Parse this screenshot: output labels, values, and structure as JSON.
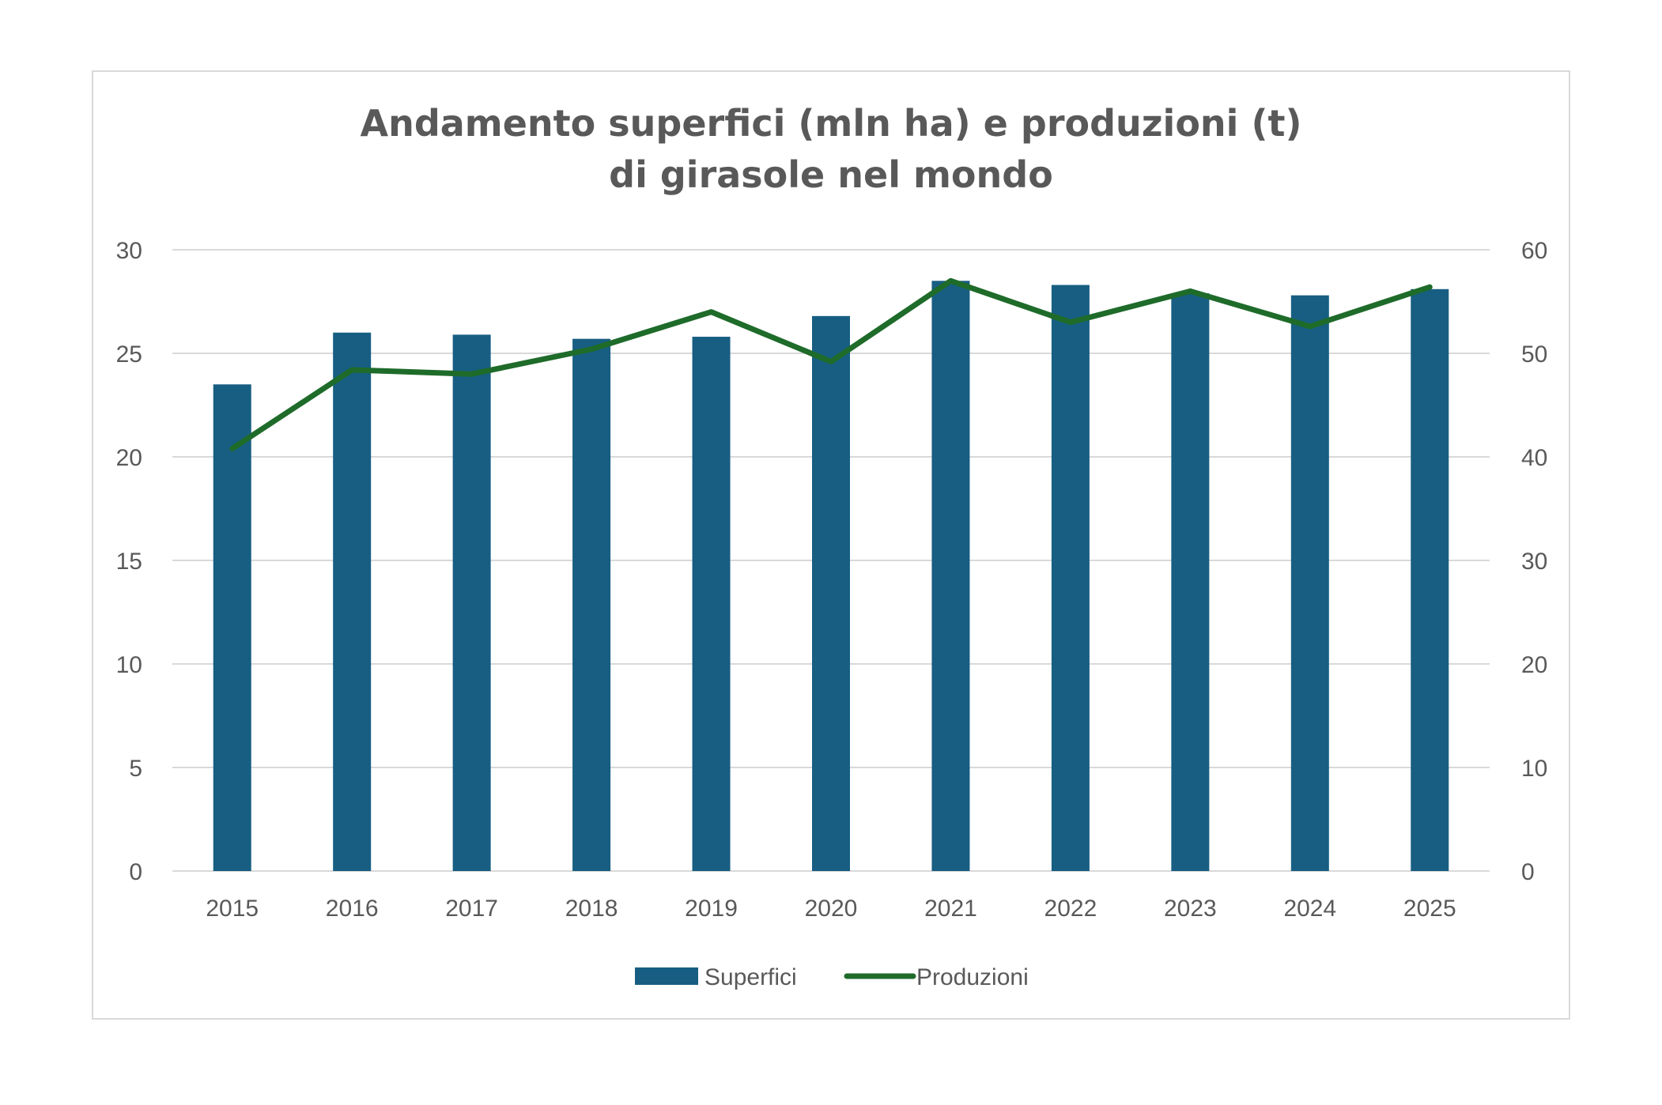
{
  "chart_data": {
    "type": "bar",
    "title_line1": "Andamento superfici (mln ha) e produzioni (t)",
    "title_line2": "di girasole nel mondo",
    "categories": [
      "2015",
      "2016",
      "2017",
      "2018",
      "2019",
      "2020",
      "2021",
      "2022",
      "2023",
      "2024",
      "2025"
    ],
    "series": [
      {
        "name": "Superfici",
        "type": "bar",
        "axis": "left",
        "color": "#175e82",
        "values": [
          23.5,
          26.0,
          25.9,
          25.7,
          25.8,
          26.8,
          28.5,
          28.3,
          27.9,
          27.8,
          28.1
        ]
      },
      {
        "name": "Produzioni",
        "type": "line",
        "axis": "right",
        "color": "#1e6b2a",
        "values": [
          40.8,
          48.4,
          48.0,
          50.4,
          54.0,
          49.2,
          57.0,
          53.0,
          56.0,
          52.6,
          56.4
        ]
      }
    ],
    "y_left": {
      "min": 0,
      "max": 30,
      "ticks": [
        "0",
        "5",
        "10",
        "15",
        "20",
        "25",
        "30"
      ]
    },
    "y_right": {
      "min": 0,
      "max": 60,
      "ticks": [
        "0",
        "10",
        "20",
        "30",
        "40",
        "50",
        "60"
      ]
    },
    "grid": true,
    "legend_position": "bottom"
  }
}
